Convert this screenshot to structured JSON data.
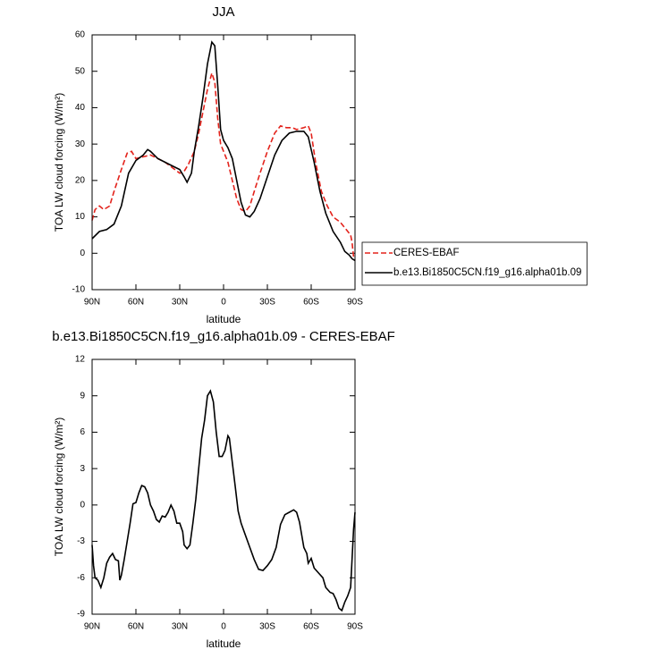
{
  "chart_data": [
    {
      "type": "line",
      "title": "JJA",
      "x_label": "latitude",
      "y_label": "TOA LW cloud forcing (W/m²)",
      "xlim": [
        90,
        -90
      ],
      "xticks": [
        {
          "value": 90,
          "label": "90N"
        },
        {
          "value": 60,
          "label": "60N"
        },
        {
          "value": 30,
          "label": "30N"
        },
        0,
        {
          "value": -30,
          "label": "30S"
        },
        {
          "value": -60,
          "label": "60S"
        },
        {
          "value": -90,
          "label": "90S"
        }
      ],
      "ylim": [
        -10,
        60
      ],
      "yticks": [
        -10,
        0,
        10,
        20,
        30,
        40,
        50,
        60
      ],
      "legend": "right",
      "series": [
        {
          "name": "CERES-EBAF",
          "color": "#e3231c",
          "dash": true,
          "x": [
            90,
            88,
            85,
            82,
            78,
            75,
            70,
            66,
            63,
            60,
            55,
            50,
            45,
            40,
            35,
            30,
            27,
            24,
            20,
            17,
            14,
            11,
            8,
            6,
            4,
            2,
            0,
            -3,
            -6,
            -9,
            -12,
            -15,
            -18,
            -21,
            -25,
            -30,
            -35,
            -39,
            -43,
            -47,
            -50,
            -55,
            -58,
            -60,
            -63,
            -67,
            -71,
            -75,
            -80,
            -84,
            -87,
            -88,
            -89,
            -90
          ],
          "values": [
            9,
            12,
            13,
            12,
            13,
            17,
            23,
            27.5,
            28,
            26,
            26.5,
            27,
            26,
            25,
            23.5,
            22,
            22.5,
            24.5,
            28,
            33,
            39,
            45,
            49.5,
            47,
            37,
            30,
            28,
            25,
            20,
            15,
            12,
            11.5,
            13,
            17,
            22,
            28,
            33,
            35,
            34.5,
            34.5,
            34,
            34.5,
            35,
            33,
            25,
            17,
            13,
            10,
            8.5,
            6.5,
            5,
            3,
            -1,
            -2
          ]
        },
        {
          "name": "b.e13.Bi1850C5CN.f19_g16.alpha01b.09",
          "color": "#000000",
          "dash": false,
          "x": [
            90,
            85,
            80,
            75,
            70,
            65,
            60,
            55,
            52,
            50,
            45,
            40,
            35,
            30,
            27,
            25,
            22,
            20,
            17,
            14,
            11,
            8,
            6,
            4,
            2,
            0,
            -3,
            -6,
            -9,
            -12,
            -15,
            -18,
            -21,
            -25,
            -30,
            -35,
            -40,
            -45,
            -50,
            -55,
            -58,
            -62,
            -66,
            -70,
            -75,
            -80,
            -83,
            -86,
            -88,
            -90
          ],
          "values": [
            4,
            6,
            6.5,
            8,
            13,
            22,
            25.5,
            27,
            28.5,
            28,
            26,
            25,
            24,
            23,
            21,
            19.5,
            22,
            28,
            35,
            43,
            52,
            58,
            57,
            46,
            34,
            31,
            29,
            26,
            20,
            14,
            10.5,
            10,
            11.5,
            15,
            21,
            27,
            31,
            33,
            33.5,
            33.5,
            32,
            25,
            17,
            11,
            6,
            3,
            0.5,
            -0.5,
            -1.5,
            -2
          ]
        }
      ]
    },
    {
      "type": "line",
      "title": "b.e13.Bi1850C5CN.f19_g16.alpha01b.09 - CERES-EBAF",
      "x_label": "latitude",
      "y_label": "TOA LW cloud forcing (W/m²)",
      "xlim": [
        90,
        -90
      ],
      "xticks": [
        {
          "value": 90,
          "label": "90N"
        },
        {
          "value": 60,
          "label": "60N"
        },
        {
          "value": 30,
          "label": "30N"
        },
        0,
        {
          "value": -30,
          "label": "30S"
        },
        {
          "value": -60,
          "label": "60S"
        },
        {
          "value": -90,
          "label": "90S"
        }
      ],
      "ylim": [
        -9,
        12
      ],
      "yticks": [
        -9,
        -6,
        -3,
        0,
        3,
        6,
        9,
        12
      ],
      "series": [
        {
          "color": "#000000",
          "dash": false,
          "x": [
            90,
            89,
            88,
            86,
            84,
            82,
            80,
            78,
            76,
            74,
            72,
            71,
            70,
            68,
            66,
            64,
            62,
            60,
            58,
            56,
            54,
            52,
            50,
            48,
            46,
            44,
            42,
            40,
            38,
            36,
            34,
            32,
            30,
            28,
            27,
            25,
            23,
            21,
            19,
            17,
            15,
            13,
            11,
            9,
            7,
            5,
            3,
            1,
            -1,
            -3,
            -4,
            -6,
            -8,
            -10,
            -12,
            -15,
            -18,
            -21,
            -24,
            -27,
            -30,
            -33,
            -36,
            -39,
            -42,
            -45,
            -48,
            -50,
            -52,
            -55,
            -57,
            -58,
            -60,
            -62,
            -65,
            -68,
            -70,
            -73,
            -75,
            -77,
            -79,
            -81,
            -83,
            -85,
            -87,
            -89,
            -90
          ],
          "values": [
            -3.3,
            -5,
            -6,
            -6.2,
            -6.8,
            -6,
            -4.8,
            -4.3,
            -4,
            -4.5,
            -4.6,
            -6.2,
            -5.8,
            -4.5,
            -3,
            -1.5,
            0.1,
            0.2,
            1,
            1.6,
            1.5,
            1,
            0,
            -0.5,
            -1.2,
            -1.4,
            -0.9,
            -1,
            -0.6,
            0,
            -0.5,
            -1.5,
            -1.5,
            -2.2,
            -3.3,
            -3.6,
            -3.3,
            -1.5,
            0.5,
            3,
            5.5,
            7,
            9,
            9.4,
            8.5,
            6,
            4,
            4,
            4.5,
            5.7,
            5.5,
            3.5,
            1.5,
            -0.5,
            -1.5,
            -2.5,
            -3.5,
            -4.5,
            -5.3,
            -5.4,
            -5,
            -4.5,
            -3.5,
            -1.6,
            -0.8,
            -0.6,
            -0.4,
            -0.6,
            -1.4,
            -3.5,
            -4,
            -4.8,
            -4.4,
            -5.2,
            -5.6,
            -6,
            -6.8,
            -7.2,
            -7.3,
            -7.8,
            -8.5,
            -8.7,
            -8,
            -7.5,
            -6.8,
            -2,
            -0.6
          ]
        }
      ]
    }
  ]
}
